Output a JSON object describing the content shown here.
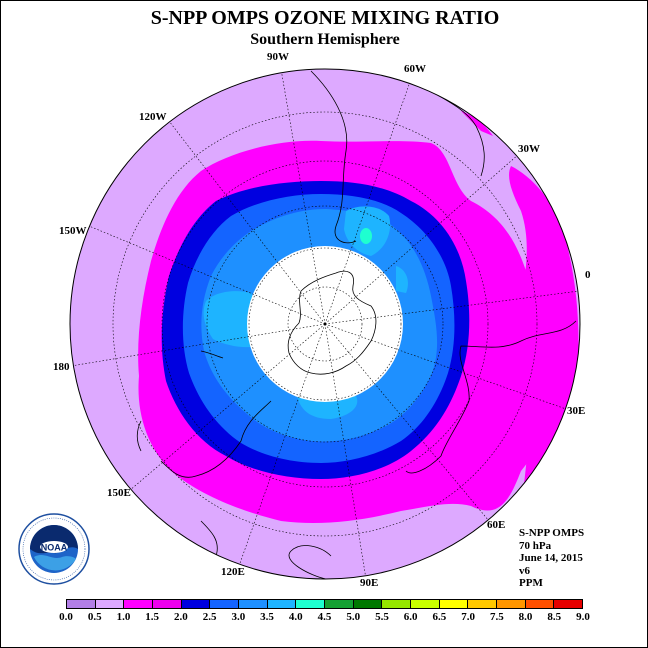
{
  "title": "S-NPP OMPS OZONE MIXING RATIO",
  "subtitle": "Southern Hemisphere",
  "longitude_labels": [
    "90W",
    "60W",
    "30W",
    "0",
    "30E",
    "60E",
    "90E",
    "120E",
    "150E",
    "180",
    "150W",
    "120W"
  ],
  "info": {
    "instrument": "S-NPP OMPS",
    "level": "70 hPa",
    "date": "June 14, 2015",
    "version": "v6",
    "units": "PPM"
  },
  "logo": {
    "name": "NOAA",
    "icon": "noaa-logo-icon"
  },
  "colorbar": {
    "ticks": [
      "0.0",
      "0.5",
      "1.0",
      "1.5",
      "2.0",
      "2.5",
      "3.0",
      "3.5",
      "4.0",
      "4.5",
      "5.0",
      "5.5",
      "6.0",
      "6.5",
      "7.0",
      "7.5",
      "8.0",
      "8.5",
      "9.0"
    ],
    "colors": [
      "#b27fe6",
      "#dda9ff",
      "#ff00ff",
      "#ee00ee",
      "#0000e0",
      "#1464ff",
      "#1e90ff",
      "#1eb4ff",
      "#1effd0",
      "#14a032",
      "#007800",
      "#96e600",
      "#c8ff00",
      "#ffff00",
      "#ffc800",
      "#ff9600",
      "#ff5000",
      "#e60000",
      "#8c5a3c"
    ]
  },
  "map": {
    "projection": "polar stereographic, south pole",
    "background_color": "#dda9ff",
    "no_data_color": "#ffffff",
    "contours": [
      {
        "range": "1.0-1.5",
        "color": "#ff00ff"
      },
      {
        "range": "1.5-2.0",
        "color": "#0000e0"
      },
      {
        "range": "2.0-2.5",
        "color": "#1464ff"
      },
      {
        "range": "2.5-3.0",
        "color": "#1e90ff"
      },
      {
        "range": "3.0-3.5",
        "color": "#1eb4ff"
      },
      {
        "range": "3.5-4.0",
        "color": "#1effd0"
      }
    ]
  }
}
